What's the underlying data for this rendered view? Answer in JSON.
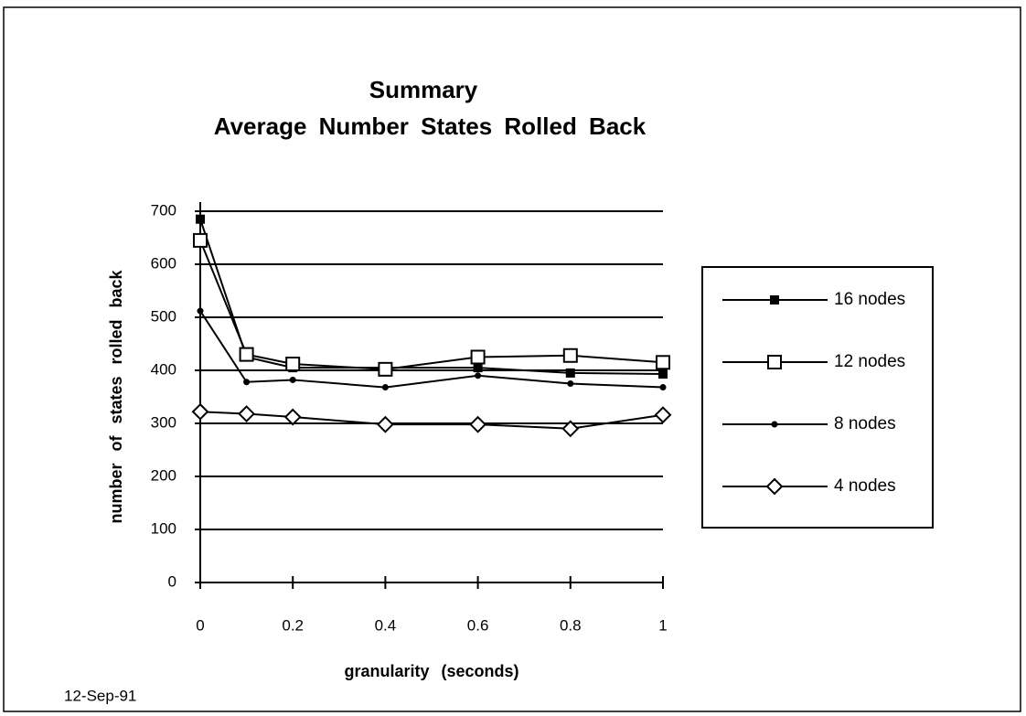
{
  "chart_data": {
    "type": "line",
    "title": "Summary",
    "subtitle": "Average Number States Rolled Back",
    "x_label": "granularity (seconds)",
    "y_label": "number of states rolled back",
    "footer": "12-Sep-91",
    "x": [
      0,
      0.1,
      0.2,
      0.4,
      0.6,
      0.8,
      1
    ],
    "xlim": [
      0,
      1
    ],
    "xticks": [
      0,
      0.2,
      0.4,
      0.6,
      0.8,
      1
    ],
    "ylim": [
      0,
      700
    ],
    "yticks": [
      0,
      100,
      200,
      300,
      400,
      500,
      600,
      700
    ],
    "grid": true,
    "legend": "right",
    "series": [
      {
        "name": "16 nodes",
        "color": "#000000",
        "marker": "filled-square",
        "values": [
          685,
          425,
          405,
          405,
          405,
          395,
          393
        ]
      },
      {
        "name": "12 nodes",
        "color": "#000000",
        "marker": "open-square",
        "values": [
          645,
          430,
          412,
          402,
          425,
          428,
          415
        ]
      },
      {
        "name": "8 nodes",
        "color": "#000000",
        "marker": "dot",
        "values": [
          512,
          378,
          382,
          368,
          390,
          375,
          368
        ]
      },
      {
        "name": "4 nodes",
        "color": "#000000",
        "marker": "open-diamond",
        "values": [
          322,
          318,
          312,
          298,
          298,
          290,
          316
        ]
      }
    ]
  }
}
